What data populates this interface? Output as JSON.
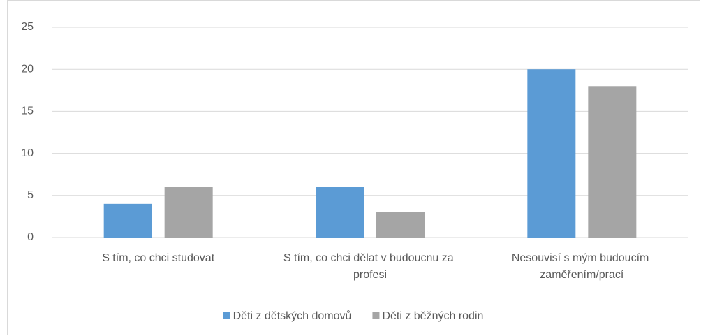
{
  "chart_data": {
    "type": "bar",
    "categories": [
      "S tím, co chci studovat",
      "S tím, co chci dělat v budoucnu za profesi",
      "Nesouvisí s mým budoucím zaměřením/prací"
    ],
    "series": [
      {
        "name": "Děti z dětských domovů",
        "color": "#5b9bd5",
        "values": [
          4,
          6,
          20
        ]
      },
      {
        "name": "Děti z běžných rodin",
        "color": "#a5a5a5",
        "values": [
          6,
          3,
          18
        ]
      }
    ],
    "ylim": [
      0,
      25
    ],
    "yticks": [
      0,
      5,
      10,
      15,
      20,
      25
    ],
    "grid": true,
    "legend": "bottom"
  }
}
